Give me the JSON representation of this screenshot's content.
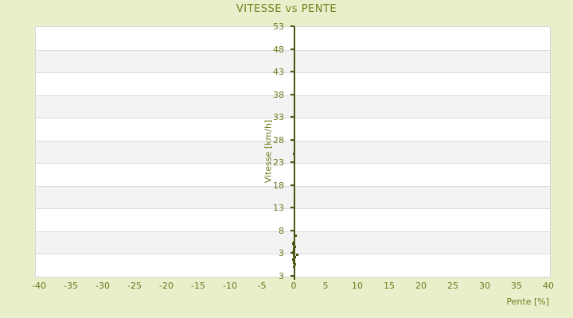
{
  "title": "VITESSE vs PENTE",
  "colors": {
    "background": "#e9eecb",
    "title_text": "#75801f",
    "tick_text": "#6e7a1e",
    "axis_line": "#4d5511",
    "point": "#4d5511",
    "band_gray": "#f3f3f3",
    "band_white": "#ffffff",
    "grid_line": "#dcdcdc"
  },
  "chart_data": {
    "type": "scatter",
    "title": "VITESSE vs PENTE",
    "xlabel": "Pente [%]",
    "ylabel": "Vitesse [km/h]",
    "xlim": [
      -40.5,
      40.5
    ],
    "ylim": [
      -2,
      53
    ],
    "x_ticks": [
      -40,
      -35,
      -30,
      -25,
      -20,
      -15,
      -10,
      -5,
      0,
      5,
      10,
      15,
      20,
      25,
      30,
      35,
      40
    ],
    "y_tick_labels": [
      "53",
      "48",
      "43",
      "38",
      "33",
      "28",
      "23",
      "18",
      "13",
      "8",
      "3",
      "3"
    ],
    "grid": "alternating horizontal bands (white / light gray), y-axis drawn vertically at x=0",
    "legend": "none",
    "series": [
      {
        "name": "vitesse-vs-pente-points",
        "marker": "small square",
        "points": [
          [
            0,
            25
          ],
          [
            0.2,
            7
          ],
          [
            0,
            5.6
          ],
          [
            -0.1,
            5.2
          ],
          [
            0,
            4.9
          ],
          [
            0.1,
            4.5
          ],
          [
            0,
            4.1
          ],
          [
            0,
            3.7
          ],
          [
            -0.1,
            3.3
          ],
          [
            0,
            3.0
          ],
          [
            0.5,
            2.7
          ],
          [
            0,
            2.5
          ],
          [
            0.1,
            2.2
          ],
          [
            0,
            1.9
          ],
          [
            -0.1,
            1.6
          ],
          [
            0,
            1.3
          ],
          [
            0,
            1.0
          ],
          [
            0.1,
            0.7
          ],
          [
            0,
            0.1
          ]
        ]
      }
    ]
  }
}
